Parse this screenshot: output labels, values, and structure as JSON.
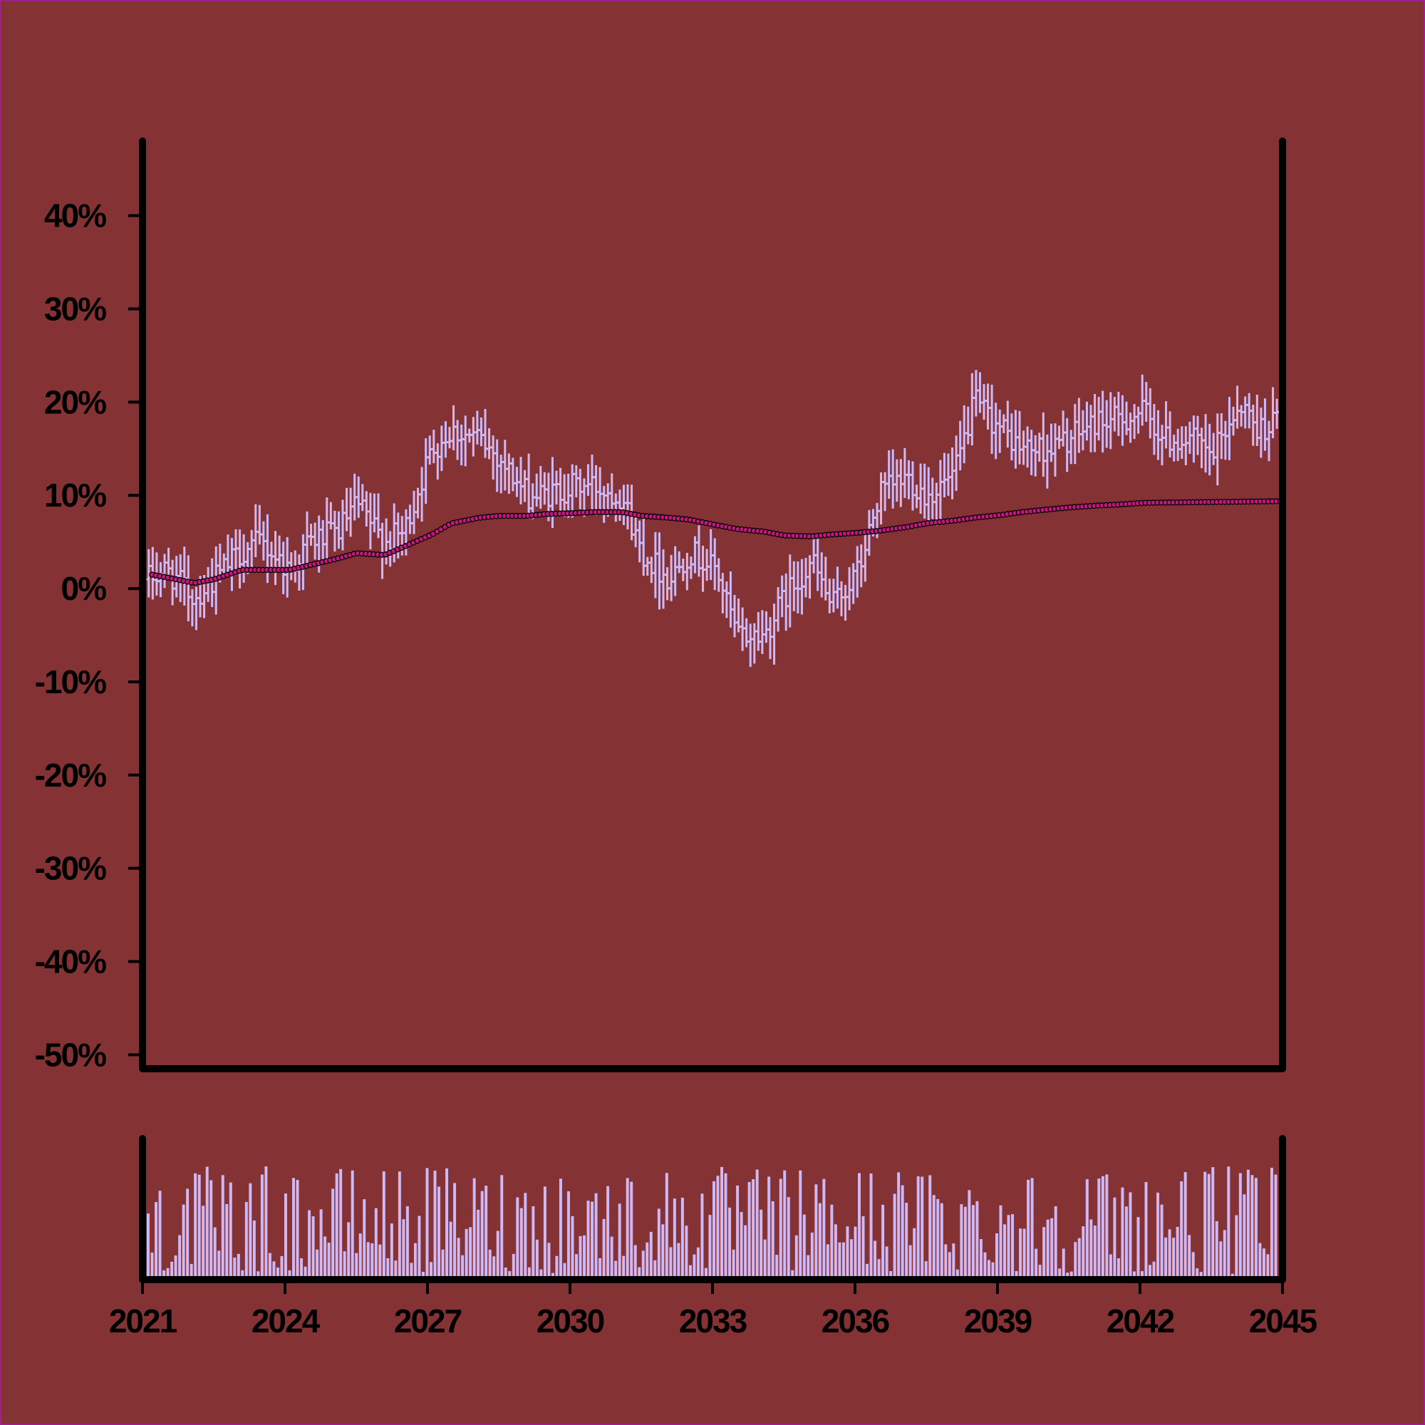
{
  "colors": {
    "background": "#843234",
    "frame": "#000000",
    "ohlc": "#d0b8f4",
    "ma_fill": "#c4167f",
    "ma_stroke": "#000000",
    "volume": "#d0b8f4",
    "outer_border": "#a0208a"
  },
  "chart_data": [
    {
      "type": "ohlc",
      "x_range": [
        "2021-01",
        "2045-01"
      ],
      "x_ticks": [
        "2021",
        "2024",
        "2027",
        "2030",
        "2033",
        "2036",
        "2039",
        "2042",
        "2045"
      ],
      "y_ticks": [
        "40%",
        "30%",
        "20%",
        "10%",
        "0%",
        "-10%",
        "-20%",
        "-30%",
        "-40%",
        "-50%"
      ],
      "y_tick_values": [
        40,
        30,
        20,
        10,
        0,
        -10,
        -20,
        -30,
        -40,
        -50
      ],
      "ylim": [
        -51.5,
        48
      ],
      "grid": false,
      "series": [
        {
          "kind": "ohlc-bars",
          "period": "month",
          "close_path_points": [
            [
              "2021-01",
              1
            ],
            [
              "2021-06",
              2
            ],
            [
              "2022-01",
              -1
            ],
            [
              "2022-06",
              1
            ],
            [
              "2023-01",
              4
            ],
            [
              "2023-06",
              5
            ],
            [
              "2024-01",
              2
            ],
            [
              "2024-06",
              5
            ],
            [
              "2025-01",
              6
            ],
            [
              "2025-06",
              9
            ],
            [
              "2026-01",
              5
            ],
            [
              "2026-06",
              6
            ],
            [
              "2027-01",
              15
            ],
            [
              "2027-06",
              17
            ],
            [
              "2028-01",
              16
            ],
            [
              "2028-06",
              14
            ],
            [
              "2029-01",
              10
            ],
            [
              "2029-06",
              10
            ],
            [
              "2030-01",
              11
            ],
            [
              "2030-06",
              11
            ],
            [
              "2031-01",
              10
            ],
            [
              "2031-06",
              4
            ],
            [
              "2032-01",
              1
            ],
            [
              "2032-06",
              4
            ],
            [
              "2033-01",
              2
            ],
            [
              "2033-06",
              -5
            ],
            [
              "2034-01",
              -5
            ],
            [
              "2034-06",
              -1
            ],
            [
              "2035-01",
              3
            ],
            [
              "2035-06",
              -2
            ],
            [
              "2036-01",
              2
            ],
            [
              "2036-06",
              10
            ],
            [
              "2037-01",
              12
            ],
            [
              "2037-06",
              10
            ],
            [
              "2038-01",
              12
            ],
            [
              "2038-06",
              20
            ],
            [
              "2039-01",
              17
            ],
            [
              "2039-06",
              15
            ],
            [
              "2040-01",
              15
            ],
            [
              "2040-06",
              16
            ],
            [
              "2041-01",
              18
            ],
            [
              "2041-06",
              18
            ],
            [
              "2042-01",
              19
            ],
            [
              "2042-06",
              16
            ],
            [
              "2043-01",
              16
            ],
            [
              "2043-06",
              14
            ],
            [
              "2044-01",
              20
            ],
            [
              "2044-06",
              17
            ],
            [
              "2045-01",
              19
            ]
          ],
          "typical_range": 6
        },
        {
          "kind": "moving-average",
          "style": "dots",
          "points": [
            [
              "2021-01",
              1.6
            ],
            [
              "2021-06",
              1.2
            ],
            [
              "2022-01",
              0.6
            ],
            [
              "2022-06",
              1.0
            ],
            [
              "2023-01",
              2.0
            ],
            [
              "2023-06",
              2.0
            ],
            [
              "2024-01",
              2.0
            ],
            [
              "2024-06",
              2.5
            ],
            [
              "2025-01",
              3.2
            ],
            [
              "2025-06",
              3.8
            ],
            [
              "2026-01",
              3.6
            ],
            [
              "2026-06",
              4.5
            ],
            [
              "2027-01",
              5.8
            ],
            [
              "2027-06",
              7.0
            ],
            [
              "2028-01",
              7.6
            ],
            [
              "2028-06",
              7.8
            ],
            [
              "2029-01",
              7.8
            ],
            [
              "2029-06",
              8.0
            ],
            [
              "2030-01",
              8.1
            ],
            [
              "2030-06",
              8.2
            ],
            [
              "2031-01",
              8.2
            ],
            [
              "2031-06",
              7.8
            ],
            [
              "2032-01",
              7.6
            ],
            [
              "2032-06",
              7.4
            ],
            [
              "2033-01",
              6.8
            ],
            [
              "2033-06",
              6.4
            ],
            [
              "2034-01",
              6.1
            ],
            [
              "2034-06",
              5.7
            ],
            [
              "2035-01",
              5.6
            ],
            [
              "2035-06",
              5.8
            ],
            [
              "2036-01",
              6.0
            ],
            [
              "2036-06",
              6.2
            ],
            [
              "2037-01",
              6.6
            ],
            [
              "2037-06",
              7.0
            ],
            [
              "2038-01",
              7.3
            ],
            [
              "2038-06",
              7.6
            ],
            [
              "2039-01",
              7.9
            ],
            [
              "2039-06",
              8.2
            ],
            [
              "2040-01",
              8.5
            ],
            [
              "2040-06",
              8.7
            ],
            [
              "2041-01",
              8.9
            ],
            [
              "2041-06",
              9.0
            ],
            [
              "2042-01",
              9.2
            ]
          ]
        }
      ]
    },
    {
      "type": "bar",
      "role": "volume",
      "x_range": [
        "2021-01",
        "2045-01"
      ],
      "y_range": [
        0,
        1
      ],
      "value_scale": "relative (no axis printed)",
      "count": 288
    }
  ]
}
